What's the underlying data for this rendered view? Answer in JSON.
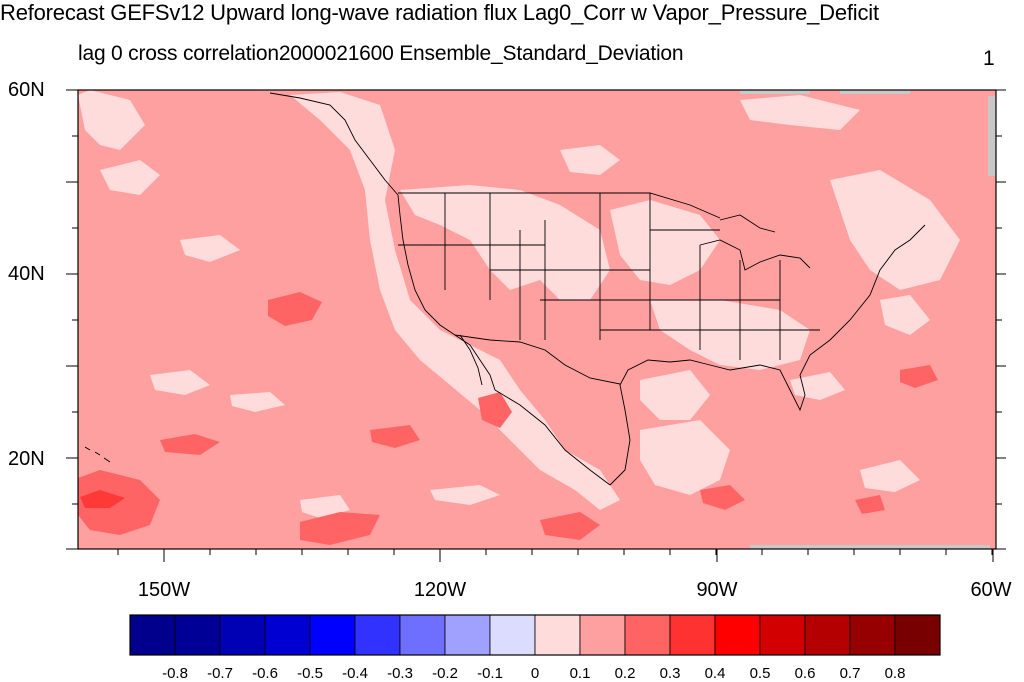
{
  "title": "Reforecast GEFSv12 Upward long-wave radiation flux Lag0_Corr w Vapor_Pressure_Deficit",
  "subtitle": "lag 0 cross correlation2000021600 Ensemble_Standard_Deviation",
  "corner_label": "1",
  "map": {
    "lat_labels": [
      "60N",
      "40N",
      "20N"
    ],
    "lon_labels": [
      "150W",
      "120W",
      "90W",
      "60W"
    ],
    "field_colors": {
      "background_band": "#ffa0a0",
      "weak_positive": "#ffdcdc",
      "moderate_positive": "#ff6464",
      "strong_positive": "#ff3838",
      "missing": "#c8c8c8"
    }
  },
  "colorbar": {
    "labels": [
      "-0.8",
      "-0.7",
      "-0.6",
      "-0.5",
      "-0.4",
      "-0.3",
      "-0.2",
      "-0.1",
      "0",
      "0.1",
      "0.2",
      "0.3",
      "0.4",
      "0.5",
      "0.6",
      "0.7",
      "0.8"
    ],
    "colors": [
      "#00008c",
      "#000096",
      "#0000b4",
      "#0000d2",
      "#0000ff",
      "#3232ff",
      "#6e6eff",
      "#a0a0ff",
      "#dcdcff",
      "#ffdcdc",
      "#ffa0a0",
      "#ff6464",
      "#ff3232",
      "#ff0000",
      "#d20000",
      "#b40000",
      "#960000",
      "#780000"
    ]
  }
}
